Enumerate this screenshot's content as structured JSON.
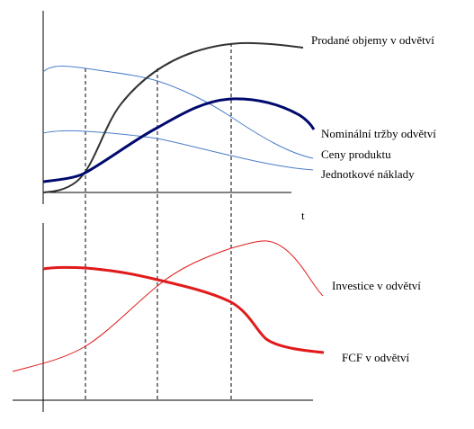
{
  "top_panel": {
    "axis_label_x": "t",
    "curves": {
      "sales_volume": {
        "label": "Prodané objemy v odvětví",
        "color": "#333333"
      },
      "nominal_revenue": {
        "label": "Nominální tržby odvětví",
        "color": "#000a6e"
      },
      "product_prices": {
        "label": "Ceny produktu",
        "color": "#4a7fc8"
      },
      "unit_costs": {
        "label": "Jednotkové náklady",
        "color": "#4a7fc8"
      }
    }
  },
  "bottom_panel": {
    "curves": {
      "investment": {
        "label": "Investice v odvětví",
        "color": "#e11b1b"
      },
      "fcf": {
        "label": "FCF v odvětví",
        "color": "#e11b1b"
      }
    }
  }
}
